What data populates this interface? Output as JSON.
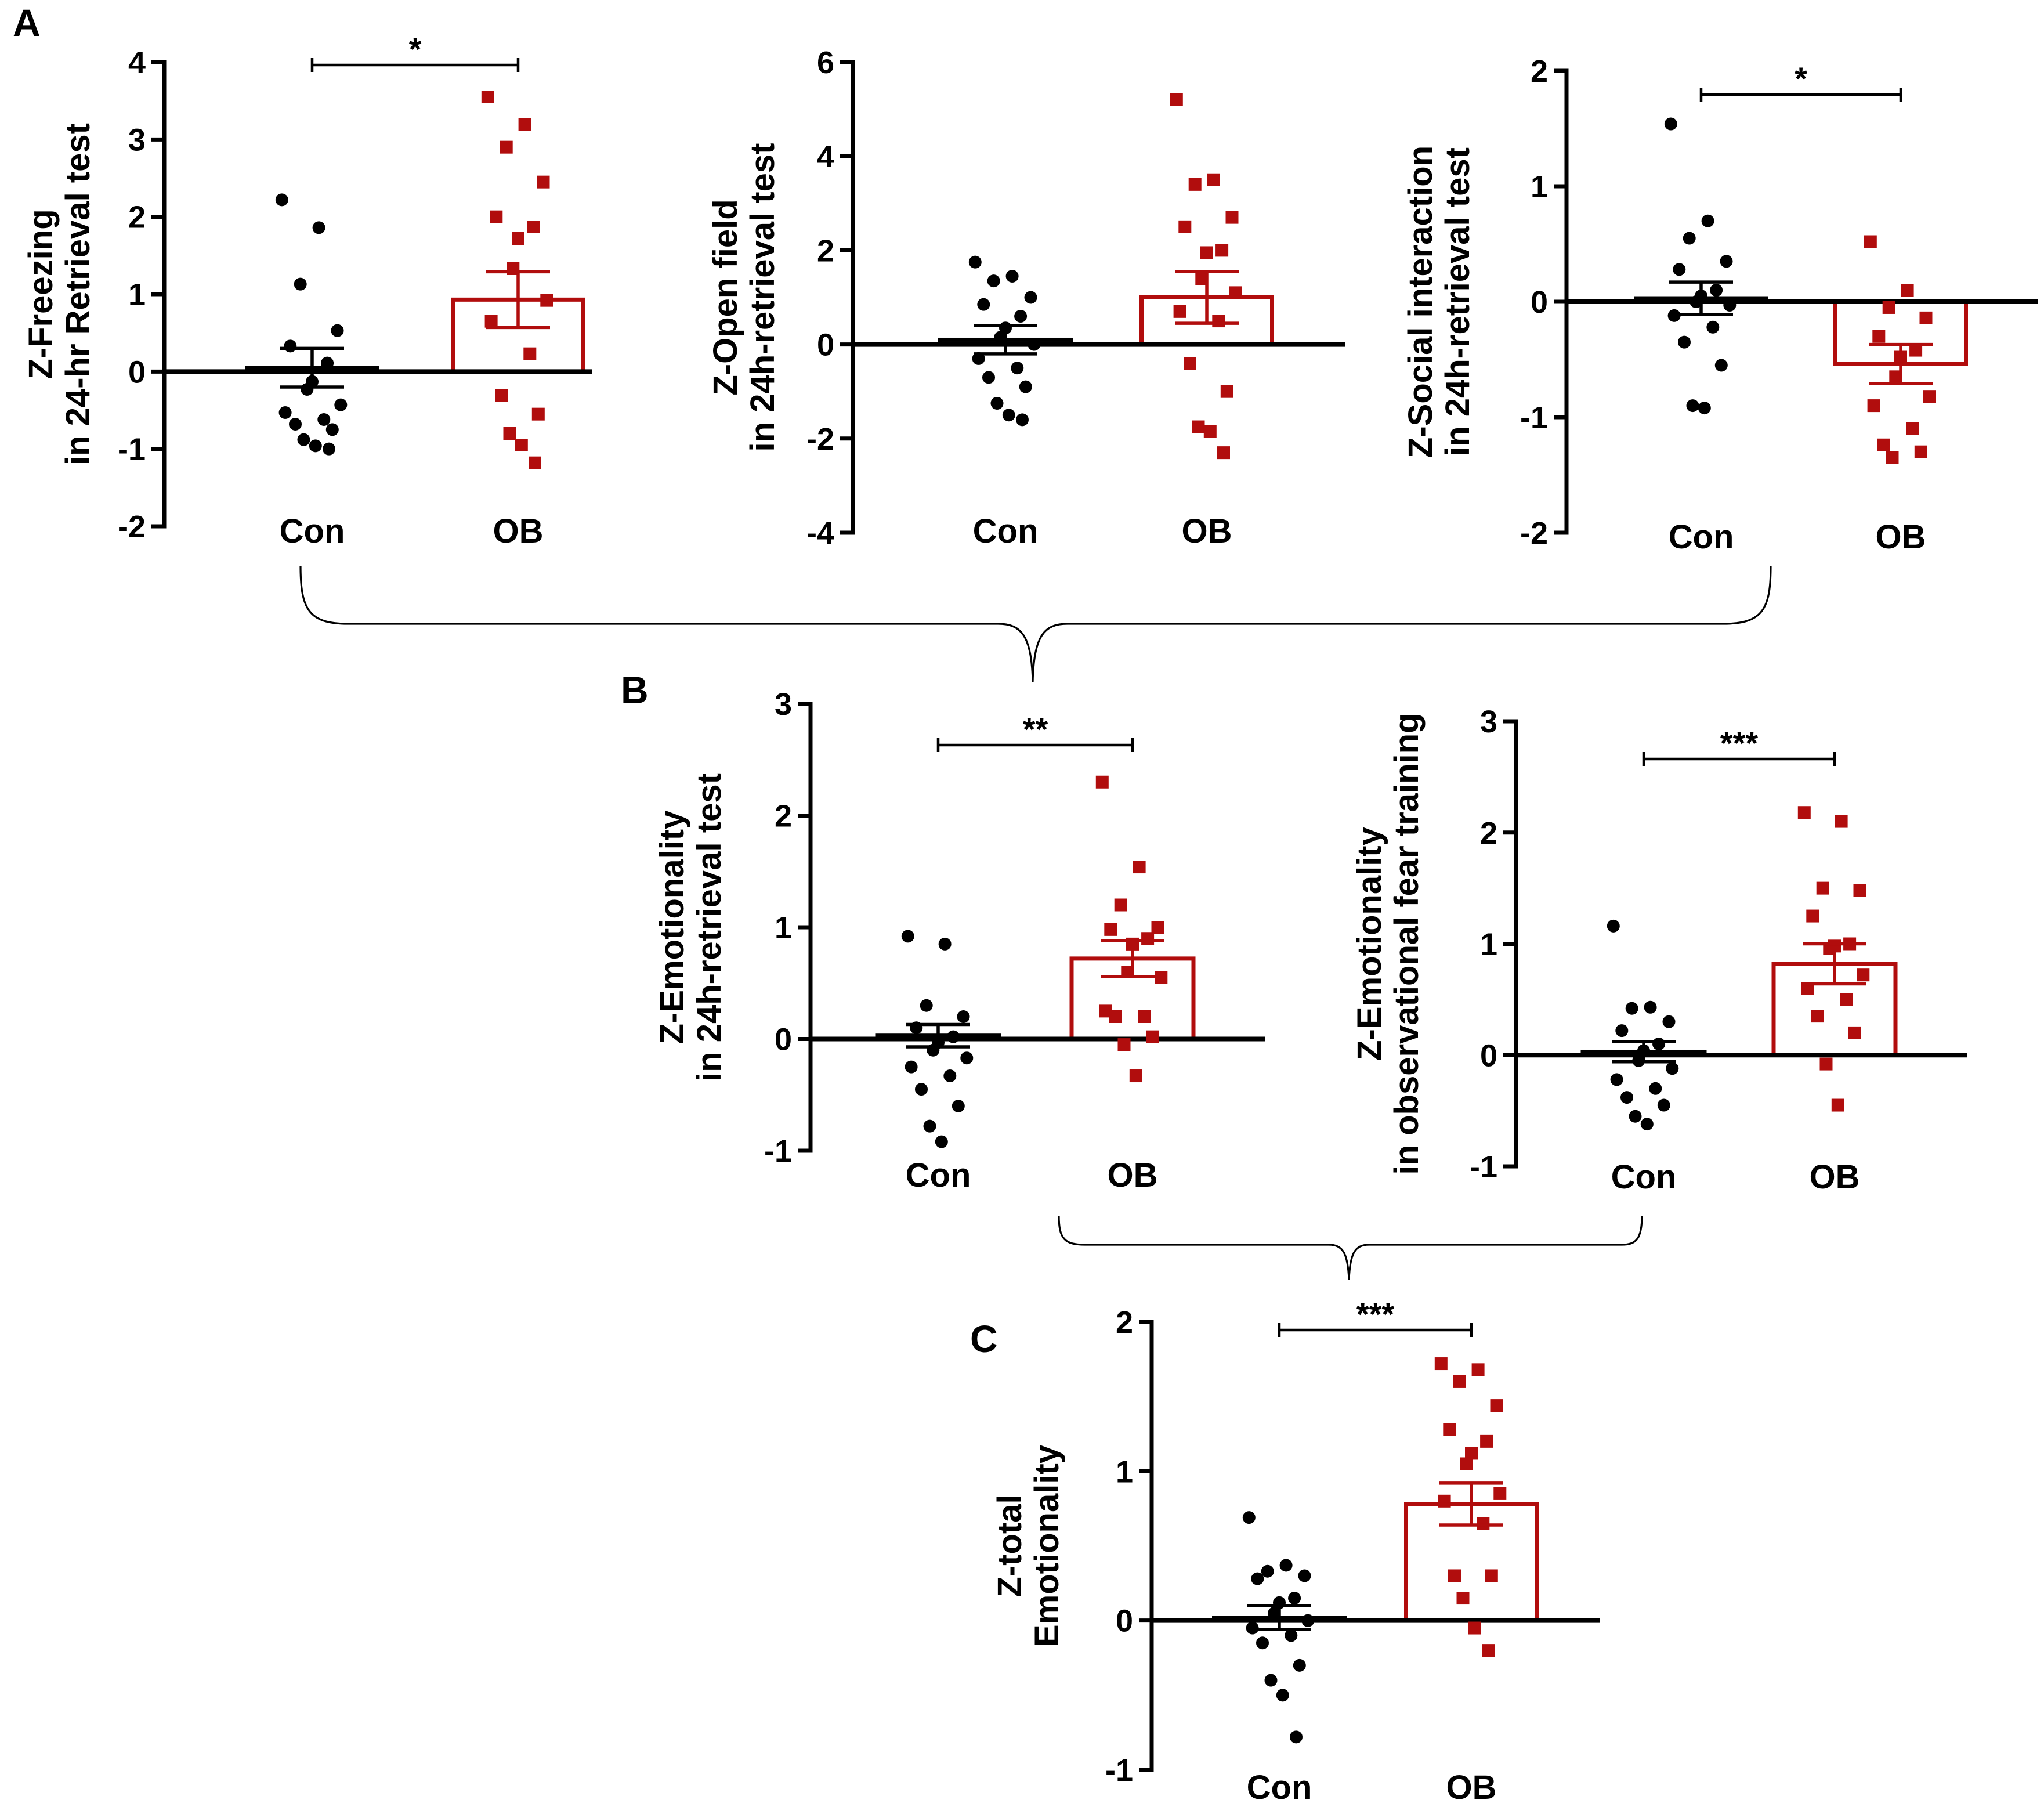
{
  "figure": {
    "panel_labels": [
      "A",
      "B",
      "C"
    ],
    "colors": {
      "con": "#000000",
      "ob": "#b10d0d"
    }
  },
  "chart_data": [
    {
      "id": "a1",
      "panel": "A",
      "type": "bar",
      "ylabel": [
        "Z-Freezing",
        "in 24-hr Retrieval test"
      ],
      "ylim": [
        -2,
        4
      ],
      "yticks": [
        4,
        3,
        2,
        1,
        0,
        -1,
        -2
      ],
      "categories": [
        "Con",
        "OB"
      ],
      "means": [
        0.05,
        0.93
      ],
      "sem": [
        0.25,
        0.36
      ],
      "significance": "*",
      "points": [
        [
          2.22,
          1.86,
          1.13,
          0.53,
          0.33,
          0.11,
          -0.13,
          -0.23,
          -0.43,
          -0.53,
          -0.62,
          -0.68,
          -0.75,
          -0.88,
          -0.96,
          -1.0
        ],
        [
          3.55,
          3.19,
          2.9,
          2.45,
          2.0,
          1.87,
          1.72,
          1.33,
          0.92,
          0.65,
          0.23,
          -0.31,
          -0.55,
          -0.8,
          -0.95,
          -1.18
        ]
      ]
    },
    {
      "id": "a2",
      "panel": "A",
      "type": "bar",
      "ylabel": [
        "Z-Open field",
        "in 24h-retrieval  test"
      ],
      "ylim": [
        -4,
        6
      ],
      "yticks": [
        6,
        4,
        2,
        0,
        -2,
        -4
      ],
      "categories": [
        "Con",
        "OB"
      ],
      "means": [
        0.1,
        1.0
      ],
      "sem": [
        0.3,
        0.55
      ],
      "significance": "",
      "points": [
        [
          1.75,
          1.45,
          1.35,
          1.0,
          0.85,
          0.6,
          0.35,
          0.15,
          0.0,
          -0.3,
          -0.5,
          -0.7,
          -0.9,
          -1.25,
          -1.5,
          -1.6
        ],
        [
          5.2,
          3.5,
          3.4,
          2.7,
          2.5,
          2.0,
          1.95,
          1.4,
          1.1,
          0.7,
          0.5,
          -0.4,
          -1.0,
          -1.75,
          -1.85,
          -2.3
        ]
      ]
    },
    {
      "id": "a3",
      "panel": "A",
      "type": "bar",
      "ylabel": [
        "Z-Social interaction",
        "in 24h-retrieval  test"
      ],
      "ylim": [
        -2,
        2
      ],
      "yticks": [
        2,
        1,
        0,
        -1,
        -2
      ],
      "categories": [
        "Con",
        "OB"
      ],
      "means": [
        0.03,
        -0.54
      ],
      "sem": [
        0.14,
        0.17
      ],
      "significance": "*",
      "points": [
        [
          1.54,
          0.7,
          0.55,
          0.35,
          0.28,
          0.1,
          0.05,
          0.0,
          -0.03,
          -0.12,
          -0.22,
          -0.35,
          -0.55,
          -0.9,
          -0.92
        ],
        [
          0.52,
          0.1,
          -0.05,
          -0.14,
          -0.3,
          -0.42,
          -0.48,
          -0.65,
          -0.82,
          -0.9,
          -1.1,
          -1.24,
          -1.3,
          -1.35
        ]
      ]
    },
    {
      "id": "b1",
      "panel": "B",
      "type": "bar",
      "ylabel": [
        "Z-Emotionality",
        "in 24h-retrieval test"
      ],
      "ylim": [
        -1,
        3
      ],
      "yticks": [
        3,
        2,
        1,
        0,
        -1
      ],
      "categories": [
        "Con",
        "OB"
      ],
      "means": [
        0.03,
        0.72
      ],
      "sem": [
        0.1,
        0.16
      ],
      "significance": "**",
      "points": [
        [
          0.92,
          0.85,
          0.3,
          0.2,
          0.1,
          0.02,
          -0.03,
          -0.1,
          -0.17,
          -0.25,
          -0.33,
          -0.45,
          -0.6,
          -0.78,
          -0.92
        ],
        [
          2.3,
          1.54,
          1.2,
          1.0,
          0.98,
          0.9,
          0.85,
          0.6,
          0.55,
          0.25,
          0.2,
          0.2,
          0.02,
          -0.05,
          -0.33
        ]
      ]
    },
    {
      "id": "b2",
      "panel": "B",
      "type": "bar",
      "ylabel": [
        "Z-Emotionality",
        "in observational fear training"
      ],
      "ylim": [
        -1,
        3
      ],
      "yticks": [
        3,
        2,
        1,
        0,
        -1
      ],
      "categories": [
        "Con",
        "OB"
      ],
      "means": [
        0.03,
        0.82
      ],
      "sem": [
        0.09,
        0.18
      ],
      "significance": "***",
      "points": [
        [
          1.16,
          0.43,
          0.42,
          0.3,
          0.22,
          0.1,
          0.04,
          -0.05,
          -0.12,
          -0.22,
          -0.3,
          -0.38,
          -0.45,
          -0.55,
          -0.62
        ],
        [
          2.18,
          2.1,
          1.5,
          1.48,
          1.25,
          1.0,
          0.98,
          0.96,
          0.72,
          0.6,
          0.5,
          0.35,
          0.2,
          -0.08,
          -0.45
        ]
      ]
    },
    {
      "id": "c1",
      "panel": "C",
      "type": "bar",
      "ylabel": [
        "Z-total",
        "Emotionality"
      ],
      "ylim": [
        -1,
        2
      ],
      "yticks": [
        2,
        1,
        0,
        -1
      ],
      "categories": [
        "Con",
        "OB"
      ],
      "means": [
        0.02,
        0.78
      ],
      "sem": [
        0.08,
        0.14
      ],
      "significance": "***",
      "points": [
        [
          0.69,
          0.37,
          0.33,
          0.3,
          0.28,
          0.15,
          0.12,
          0.05,
          0.0,
          -0.05,
          -0.1,
          -0.15,
          -0.3,
          -0.4,
          -0.5,
          -0.78
        ],
        [
          1.72,
          1.68,
          1.6,
          1.44,
          1.28,
          1.2,
          1.12,
          1.05,
          0.85,
          0.8,
          0.65,
          0.3,
          0.3,
          0.15,
          -0.05,
          -0.2
        ]
      ]
    }
  ]
}
